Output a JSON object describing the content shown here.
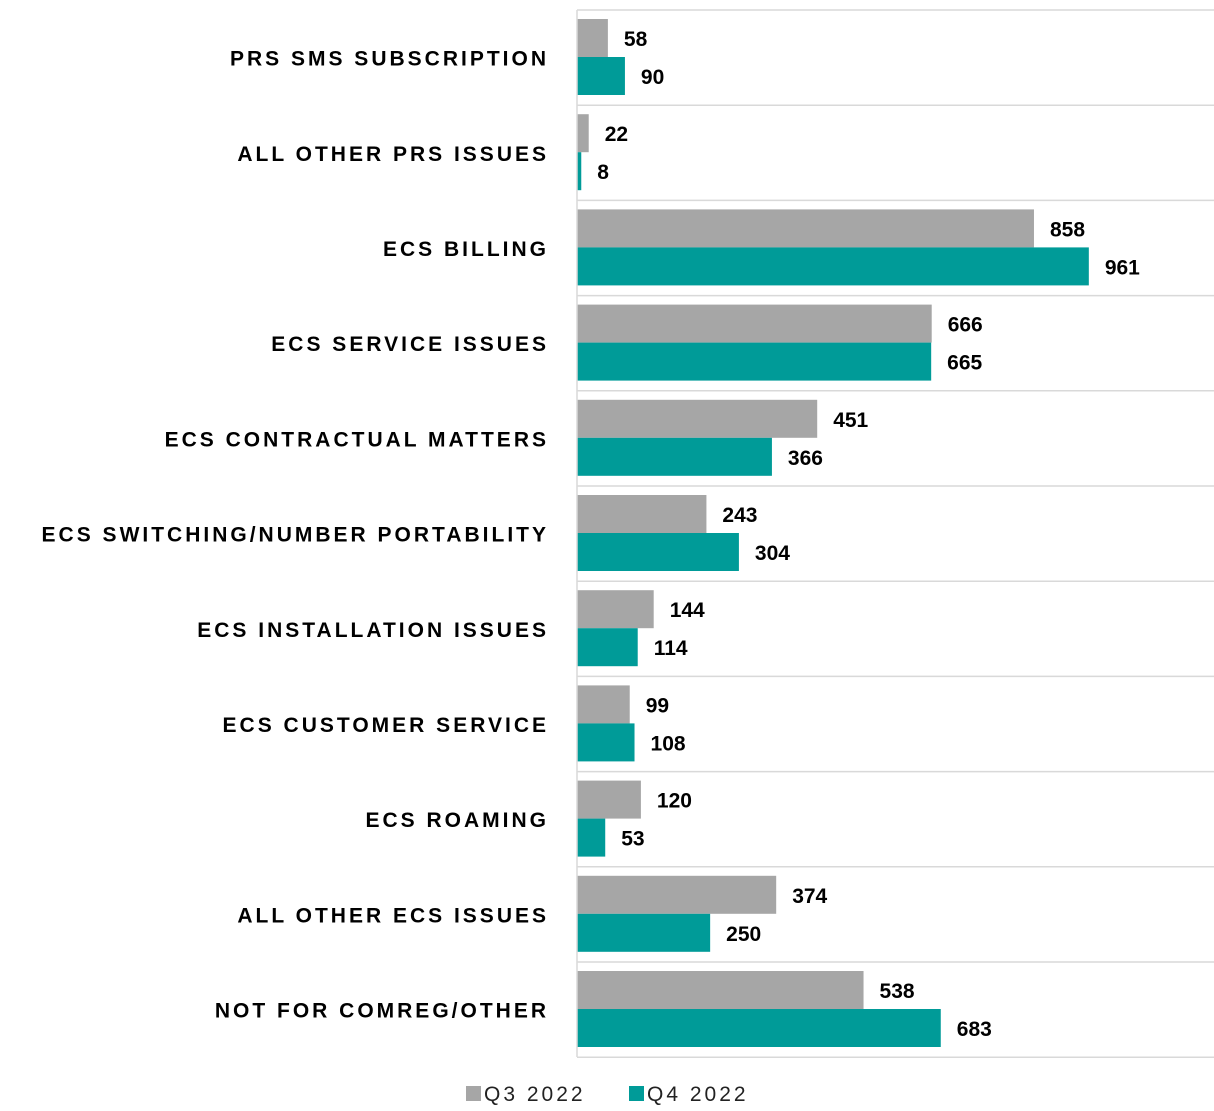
{
  "chart_data": {
    "type": "bar",
    "orientation": "horizontal",
    "categories": [
      "PRS SMS SUBSCRIPTION",
      "ALL OTHER PRS ISSUES",
      "ECS BILLING",
      "ECS SERVICE ISSUES",
      "ECS CONTRACTUAL MATTERS",
      "ECS SWITCHING/NUMBER PORTABILITY",
      "ECS INSTALLATION ISSUES",
      "ECS CUSTOMER SERVICE",
      "ECS ROAMING",
      "ALL OTHER ECS ISSUES",
      "NOT FOR COMREG/OTHER"
    ],
    "series": [
      {
        "name": "Q3 2022",
        "color": "#a6a6a6",
        "values": [
          58,
          22,
          858,
          666,
          451,
          243,
          144,
          99,
          120,
          374,
          538
        ]
      },
      {
        "name": "Q4 2022",
        "color": "#009b98",
        "values": [
          90,
          8,
          961,
          665,
          366,
          304,
          114,
          108,
          53,
          250,
          683
        ]
      }
    ],
    "title": "",
    "xlabel": "",
    "ylabel": "",
    "xlim": [
      0,
      1200
    ],
    "grid": "horizontal separators between categories",
    "legend_position": "bottom-center",
    "data_labels": true
  }
}
